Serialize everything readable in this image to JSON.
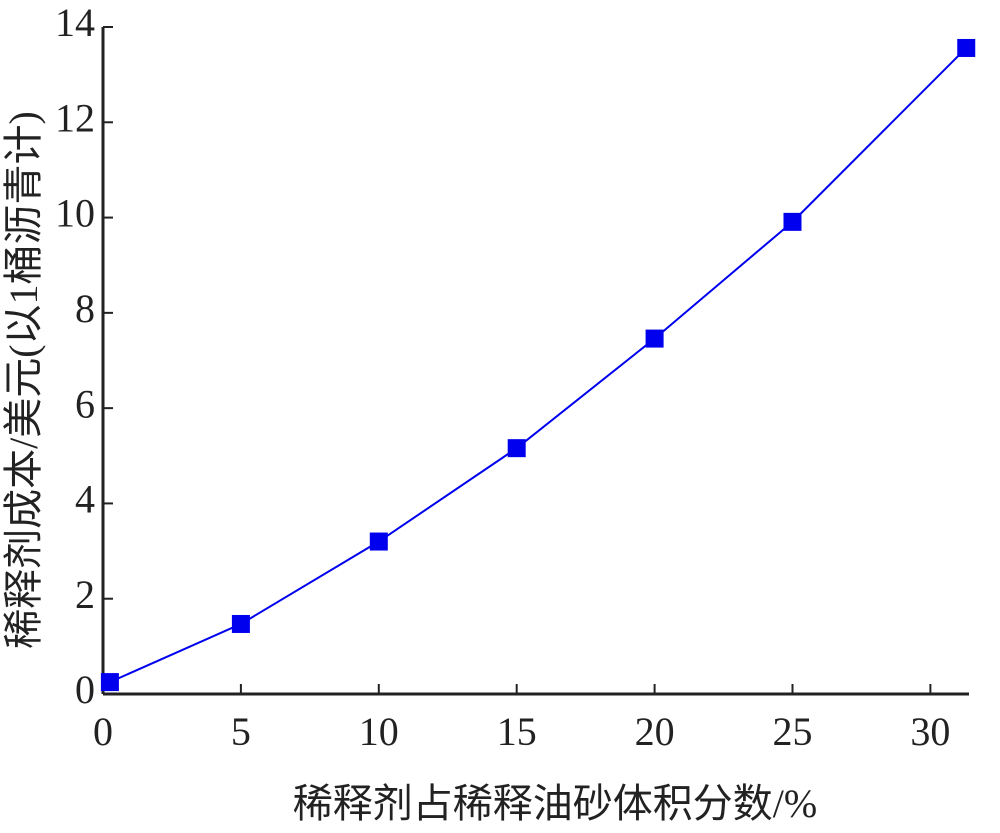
{
  "chart_data": {
    "type": "line",
    "x_label": "稀释剂占稀释油砂体积分数/%",
    "y_label": "稀释剂成本/美元(以1桶沥青计)",
    "x": [
      0.25,
      5,
      10,
      15,
      20,
      25,
      31.3
    ],
    "series": [
      {
        "color": "#0000ee",
        "values": [
          0.25,
          1.47,
          3.2,
          5.16,
          7.46,
          9.91,
          13.56
        ]
      }
    ],
    "xlim": [
      0,
      31.4
    ],
    "xticks": [
      0,
      5,
      10,
      15,
      20,
      25,
      30
    ],
    "ylim": [
      0,
      14
    ],
    "yticks": [
      0,
      2,
      4,
      6,
      8,
      10,
      12,
      14
    ]
  }
}
